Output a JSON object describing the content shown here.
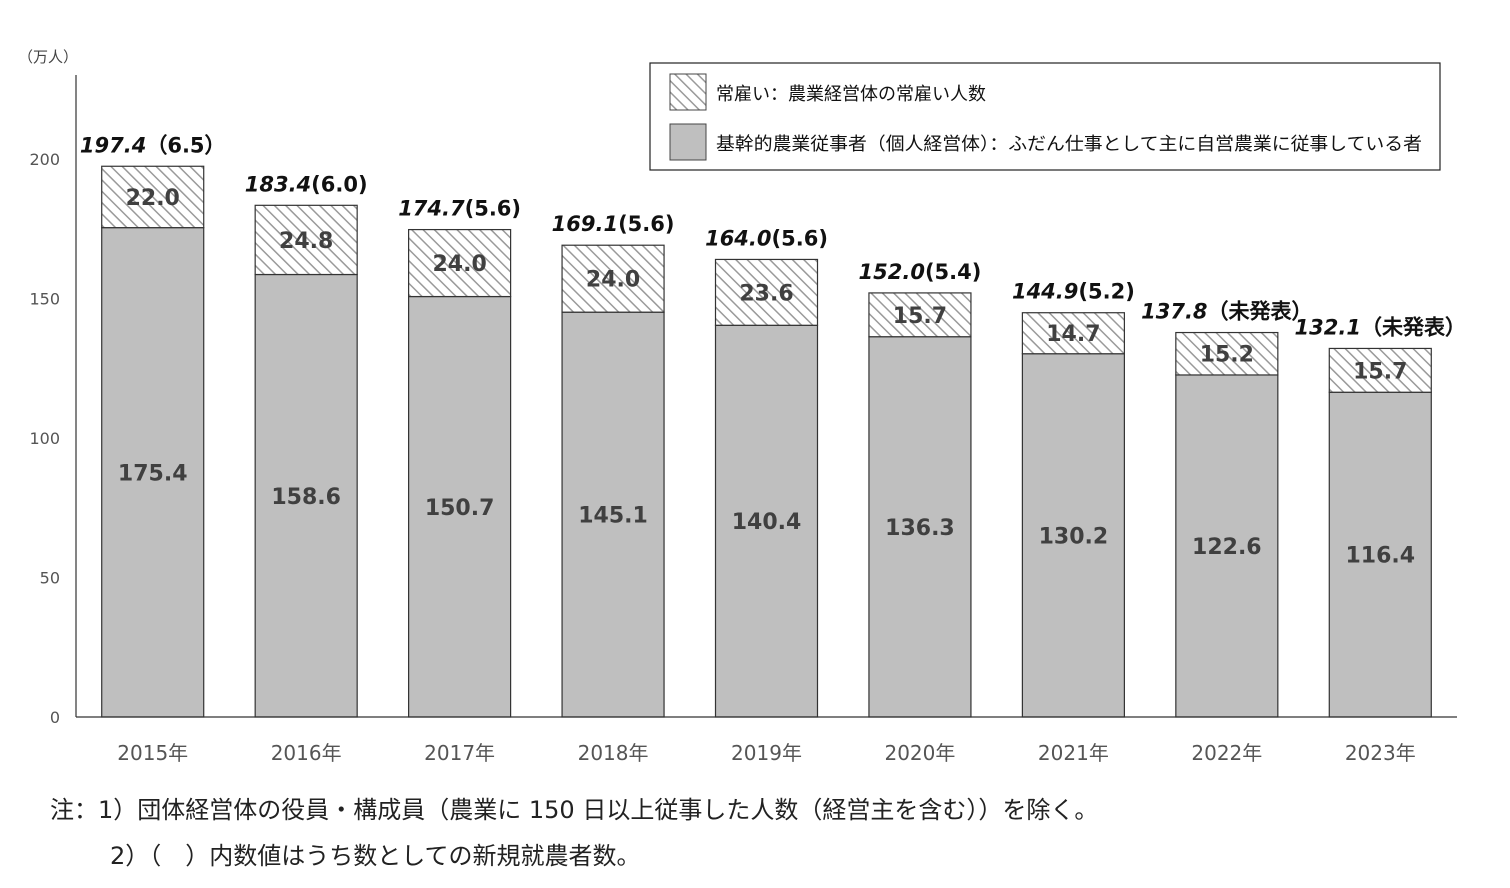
{
  "chart_data": {
    "type": "bar",
    "stacked": true,
    "unit_label": "（万人）",
    "categories": [
      "2015年",
      "2016年",
      "2017年",
      "2018年",
      "2019年",
      "2020年",
      "2021年",
      "2022年",
      "2023年"
    ],
    "series": [
      {
        "name": "基幹的農業従事者（個人経営体）：ふだん仕事として主に自営農業に従事している者",
        "values": [
          175.4,
          158.6,
          150.7,
          145.1,
          140.4,
          136.3,
          130.2,
          122.6,
          116.4
        ],
        "labels": [
          "175.4",
          "158.6",
          "150.7",
          "145.1",
          "140.4",
          "136.3",
          "130.2",
          "122.6",
          "116.4"
        ],
        "color": "#bfbfbf",
        "pattern": "solid"
      },
      {
        "name": "常雇い：農業経営体の常雇い人数",
        "values": [
          22.0,
          24.8,
          24.0,
          24.0,
          23.6,
          15.7,
          14.7,
          15.2,
          15.7
        ],
        "labels": [
          "22.0",
          "24.8",
          "24.0",
          "24.0",
          "23.6",
          "15.7",
          "14.7",
          "15.2",
          "15.7"
        ],
        "color": "#ffffff",
        "pattern": "diagonal-hatch"
      }
    ],
    "totals": [
      "197.4",
      "183.4",
      "174.7",
      "169.1",
      "164.0",
      "152.0",
      "144.9",
      "137.8",
      "132.1"
    ],
    "new_farmers": [
      "（6.5）",
      "(6.0)",
      "(5.6)",
      "(5.6)",
      "(5.6)",
      "(5.4)",
      "(5.2)",
      "（未発表）",
      "（未発表）"
    ],
    "total_values": [
      197.4,
      183.4,
      174.7,
      169.1,
      164.0,
      152.0,
      144.9,
      137.8,
      132.1
    ],
    "ylim": [
      0,
      230
    ],
    "yticks": [
      0,
      50,
      100,
      150,
      200
    ],
    "grid": false,
    "legend_position": "top-right"
  },
  "notes": {
    "line1": "注：1）団体経営体の役員・構成員（農業に 150 日以上従事した人数（経営主を含む））を除く。",
    "line2": "2）（　）内数値はうち数としての新規就農者数。"
  },
  "legend": {
    "item1": "常雇い：農業経営体の常雇い人数",
    "item2": "基幹的農業従事者（個人経営体）：ふだん仕事として主に自営農業に従事している者"
  }
}
